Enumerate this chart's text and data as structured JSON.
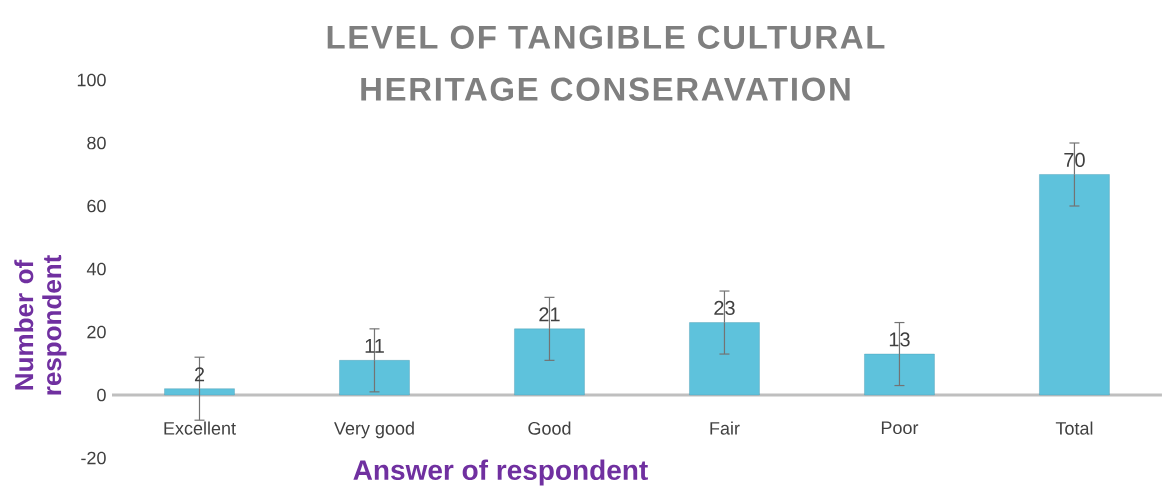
{
  "chart_data": {
    "type": "bar",
    "title": "LEVEL OF TANGIBLE CULTURAL HERITAGE CONSERAVATION",
    "xlabel": "Answer of respondent",
    "ylabel": "Number of respondent",
    "categories": [
      "Excellent",
      "Very good",
      "Good",
      "Fair",
      "Poor",
      "Total"
    ],
    "values": [
      2,
      11,
      21,
      23,
      13,
      70
    ],
    "errors": [
      10,
      10,
      10,
      10,
      10,
      10
    ],
    "color": "#5ec2dc",
    "ylim": [
      -20,
      100
    ],
    "yticks": [
      -20,
      0,
      20,
      40,
      60,
      80,
      100
    ],
    "data_labels": true
  }
}
